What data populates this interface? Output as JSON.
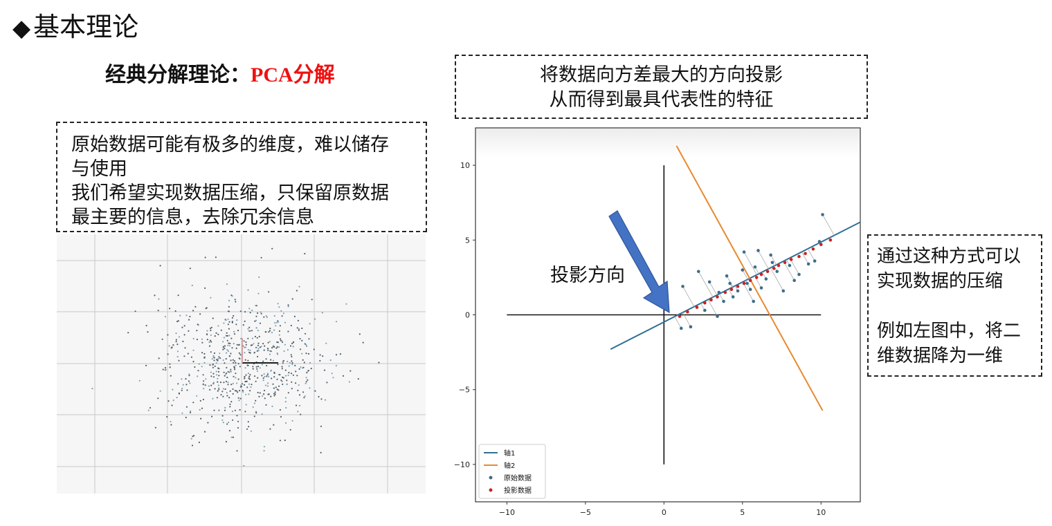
{
  "header": {
    "bullet": "◆",
    "title": "基本理论"
  },
  "subtitle": {
    "prefix": "经典分解理论：",
    "highlight_latin": "PCA",
    "highlight_cjk": "分解"
  },
  "left_note": {
    "lines": [
      "原始数据可能有极多的维度，难以储存",
      "与使用",
      "我们希望实现数据压缩，只保留原数据",
      "最主要的信息，去除冗余信息"
    ]
  },
  "top_note": {
    "lines": [
      "将数据向方差最大的方向投影",
      "从而得到最具代表性的特征"
    ]
  },
  "right_note": {
    "lines": [
      "通过这种方式可以",
      "实现数据的压缩",
      "",
      "例如左图中，将二",
      "维数据降为一维"
    ]
  },
  "arrow_label": "投影方向",
  "colors": {
    "accent_red": "#ee1111",
    "arrow_blue": "#4472c4",
    "axis1": "#2f6f95",
    "axis2": "#e8892f",
    "original": "#3b6d8c",
    "projected": "#cc2222"
  },
  "chart_data": [
    {
      "type": "scatter",
      "title": "",
      "xlabel": "",
      "ylabel": "",
      "description_points": 700,
      "grid": true,
      "series": []
    },
    {
      "type": "scatter",
      "title": "",
      "xlabel": "",
      "ylabel": "",
      "xlim": [
        -12,
        12.5
      ],
      "ylim": [
        -12.5,
        12.5
      ],
      "xticks": [
        "−10",
        "−5",
        "0",
        "5",
        "10"
      ],
      "yticks": [
        "10",
        "5",
        "0",
        "−5",
        "−10"
      ],
      "xtick_values": [
        -10,
        -5,
        0,
        5,
        10
      ],
      "ytick_values": [
        10,
        5,
        0,
        -5,
        -10
      ],
      "legend_position": "bottom-left",
      "reference_axes": {
        "horizontal": {
          "x": [
            -10,
            10
          ],
          "y": 0
        },
        "vertical": {
          "x": 0,
          "y": [
            -10,
            10
          ]
        }
      },
      "series": [
        {
          "name": "轴1",
          "kind": "line",
          "x": [
            -3.4,
            12.5
          ],
          "y": [
            -2.3,
            6.2
          ]
        },
        {
          "name": "轴2",
          "kind": "line",
          "x": [
            0.8,
            10.1
          ],
          "y": [
            11.3,
            -6.4
          ]
        },
        {
          "name": "原始数据",
          "kind": "scatter",
          "x": [
            1.2,
            1.1,
            1.7,
            2.2,
            2.9,
            3.4,
            3.0,
            3.8,
            4.2,
            4.4,
            4.7,
            5.0,
            5.1,
            5.3,
            5.5,
            5.8,
            6.0,
            6.2,
            6.5,
            6.9,
            7.2,
            7.6,
            8.0,
            8.3,
            8.6,
            9.2,
            9.6,
            9.9,
            10.1,
            3.5,
            2.6,
            4.0,
            5.7,
            6.8
          ],
          "y": [
            1.9,
            -0.9,
            -0.8,
            2.9,
            2.2,
            -0.1,
            1.0,
            0.9,
            2.1,
            1.2,
            1.6,
            3.0,
            4.2,
            2.1,
            1.7,
            3.2,
            4.3,
            1.8,
            2.4,
            3.5,
            2.9,
            1.6,
            3.3,
            2.3,
            2.7,
            3.4,
            3.6,
            4.9,
            6.7,
            1.5,
            0.3,
            2.6,
            0.9,
            4.0
          ]
        },
        {
          "name": "投影数据",
          "kind": "scatter",
          "x": [
            1.0,
            1.5,
            2.1,
            2.6,
            3.0,
            3.4,
            3.9,
            4.3,
            4.7,
            5.1,
            5.5,
            5.9,
            6.2,
            6.6,
            7.0,
            7.3,
            7.7,
            8.1,
            8.6,
            9.0,
            9.5,
            10.0,
            10.6
          ],
          "y": [
            -0.1,
            0.2,
            0.5,
            0.8,
            1.0,
            1.2,
            1.5,
            1.7,
            1.9,
            2.1,
            2.3,
            2.5,
            2.7,
            2.9,
            3.1,
            3.3,
            3.5,
            3.7,
            3.9,
            4.1,
            4.4,
            4.7,
            5.0
          ]
        }
      ]
    }
  ]
}
